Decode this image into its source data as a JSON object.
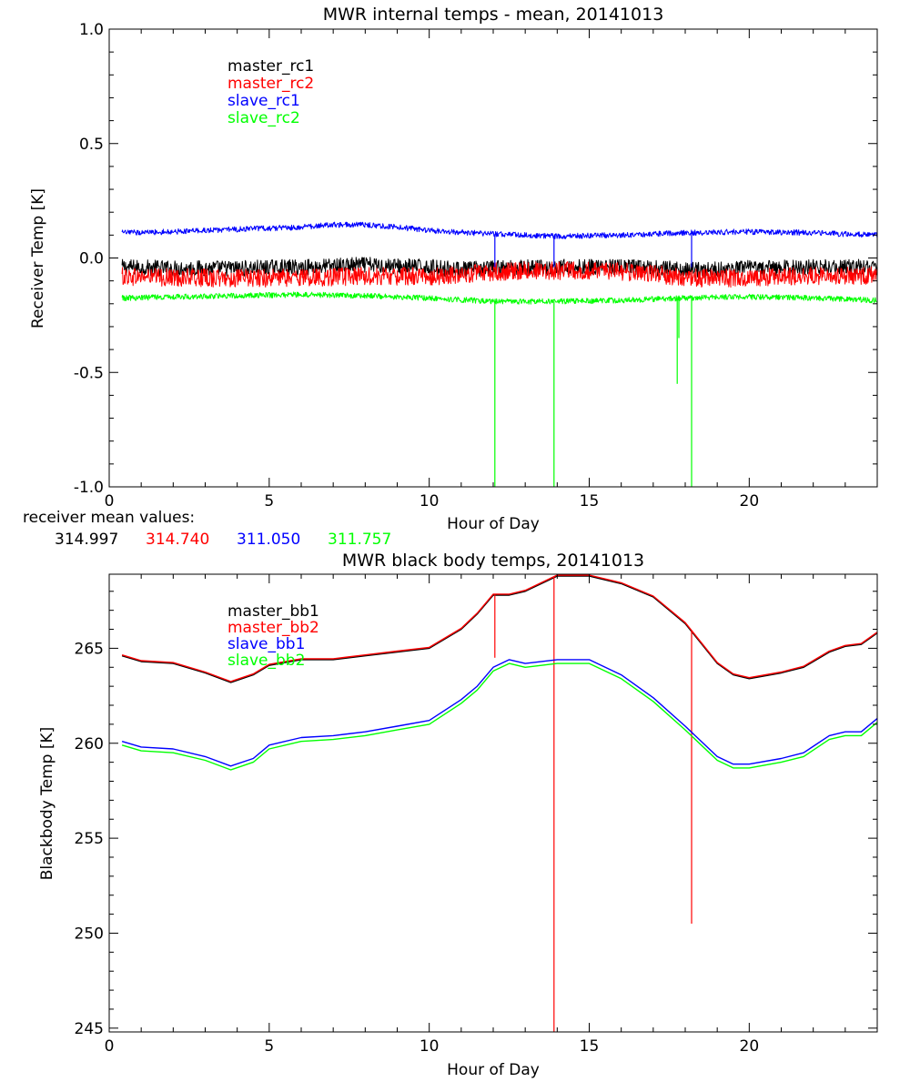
{
  "mean_values": {
    "label": "receiver mean values:",
    "values": [
      {
        "text": "314.997",
        "color": "#000000"
      },
      {
        "text": "314.740",
        "color": "#ff0000"
      },
      {
        "text": "311.050",
        "color": "#0000ff"
      },
      {
        "text": "311.757",
        "color": "#00ff00"
      }
    ]
  },
  "chart_data": [
    {
      "type": "line",
      "title": "MWR internal temps - mean, 20141013",
      "xlabel": "Hour of Day",
      "ylabel": "Receiver Temp [K]",
      "xlim": [
        0,
        24
      ],
      "ylim": [
        -1.0,
        1.0
      ],
      "xticks": [
        0,
        5,
        10,
        15,
        20
      ],
      "xtick_labels": [
        "0",
        "5",
        "10",
        "15",
        "20"
      ],
      "yticks": [
        -1.0,
        -0.5,
        0.0,
        0.5,
        1.0
      ],
      "ytick_labels": [
        "-1.0",
        "-0.5",
        "0.0",
        "0.5",
        "1.0"
      ],
      "grid": false,
      "legend_position": "top-left",
      "series": [
        {
          "name": "master_rc1",
          "color": "#000000",
          "noise": 0.035,
          "x": [
            0.4,
            2,
            4,
            6,
            8,
            10,
            11,
            12,
            13,
            14,
            15,
            16,
            17,
            18,
            19,
            20,
            22,
            24
          ],
          "y": [
            -0.04,
            -0.045,
            -0.045,
            -0.04,
            -0.03,
            -0.04,
            -0.05,
            -0.045,
            -0.04,
            -0.04,
            -0.04,
            -0.04,
            -0.045,
            -0.05,
            -0.05,
            -0.045,
            -0.04,
            -0.04
          ]
        },
        {
          "name": "master_rc2",
          "color": "#ff0000",
          "noise": 0.04,
          "x": [
            0.4,
            2,
            4,
            6,
            8,
            10,
            11,
            12,
            13,
            14,
            15,
            16,
            17,
            18,
            19,
            20,
            22,
            24
          ],
          "y": [
            -0.08,
            -0.085,
            -0.09,
            -0.085,
            -0.08,
            -0.08,
            -0.075,
            -0.06,
            -0.055,
            -0.055,
            -0.055,
            -0.06,
            -0.07,
            -0.085,
            -0.09,
            -0.085,
            -0.08,
            -0.075
          ]
        },
        {
          "name": "slave_rc1",
          "color": "#0000ff",
          "noise": 0.012,
          "x": [
            0.4,
            2,
            4,
            6,
            7,
            8,
            9,
            10,
            12,
            14,
            16,
            18,
            20,
            22,
            24
          ],
          "y": [
            0.11,
            0.115,
            0.125,
            0.135,
            0.145,
            0.145,
            0.135,
            0.12,
            0.105,
            0.095,
            0.1,
            0.11,
            0.115,
            0.11,
            0.1
          ],
          "spikes": [
            {
              "x": 12.05,
              "y": -0.04
            },
            {
              "x": 13.9,
              "y": -0.04
            },
            {
              "x": 18.2,
              "y": -0.04
            }
          ]
        },
        {
          "name": "slave_rc2",
          "color": "#00ff00",
          "noise": 0.012,
          "x": [
            0.4,
            2,
            4,
            6,
            8,
            10,
            12,
            14,
            16,
            18,
            20,
            22,
            24
          ],
          "y": [
            -0.175,
            -0.17,
            -0.165,
            -0.16,
            -0.165,
            -0.175,
            -0.19,
            -0.19,
            -0.185,
            -0.175,
            -0.17,
            -0.175,
            -0.185
          ],
          "spikes": [
            {
              "x": 12.05,
              "y": -1.0
            },
            {
              "x": 13.9,
              "y": -1.0
            },
            {
              "x": 17.75,
              "y": -0.55
            },
            {
              "x": 17.8,
              "y": -0.35
            },
            {
              "x": 18.2,
              "y": -1.0
            }
          ]
        }
      ]
    },
    {
      "type": "line",
      "title": "MWR black body temps, 20141013",
      "xlabel": "Hour of Day",
      "ylabel": "Blackbody Temp [K]",
      "xlim": [
        0,
        24
      ],
      "ylim": [
        244.8,
        268.9
      ],
      "xticks": [
        0,
        5,
        10,
        15,
        20
      ],
      "xtick_labels": [
        "0",
        "5",
        "10",
        "15",
        "20"
      ],
      "yticks": [
        245,
        250,
        255,
        260,
        265
      ],
      "ytick_labels": [
        "245",
        "250",
        "255",
        "260",
        "265"
      ],
      "grid": false,
      "legend_position": "top-left",
      "series": [
        {
          "name": "master_bb1",
          "color": "#000000",
          "x": [
            0.4,
            1,
            2,
            3,
            3.8,
            4.5,
            5,
            6,
            7,
            8,
            9,
            10,
            11,
            11.5,
            12,
            12.5,
            13,
            14,
            15,
            16,
            17,
            18,
            19,
            19.5,
            20,
            21,
            21.7,
            22.5,
            23,
            23.5,
            24
          ],
          "y": [
            264.6,
            264.3,
            264.2,
            263.7,
            263.2,
            263.6,
            264.1,
            264.4,
            264.4,
            264.6,
            264.8,
            265.0,
            266.0,
            266.8,
            267.8,
            267.8,
            268.0,
            268.8,
            268.8,
            268.4,
            267.7,
            266.3,
            264.2,
            263.6,
            263.4,
            263.7,
            264.0,
            264.8,
            265.1,
            265.2,
            265.8
          ]
        },
        {
          "name": "master_bb2",
          "color": "#ff0000",
          "x": [
            0.4,
            1,
            2,
            3,
            3.8,
            4.5,
            5,
            6,
            7,
            8,
            9,
            10,
            11,
            11.5,
            12,
            12.5,
            13,
            14,
            15,
            16,
            17,
            18,
            19,
            19.5,
            20,
            21,
            21.7,
            22.5,
            23,
            23.5,
            24
          ],
          "y": [
            264.65,
            264.35,
            264.25,
            263.75,
            263.25,
            263.65,
            264.15,
            264.45,
            264.45,
            264.65,
            264.85,
            265.05,
            266.05,
            266.85,
            267.85,
            267.85,
            268.05,
            268.85,
            268.85,
            268.45,
            267.75,
            266.35,
            264.25,
            263.65,
            263.45,
            263.75,
            264.05,
            264.85,
            265.15,
            265.25,
            265.85
          ],
          "spikes": [
            {
              "x": 12.05,
              "y": 264.5
            },
            {
              "x": 13.9,
              "y": 244.8
            },
            {
              "x": 18.2,
              "y": 250.5
            }
          ]
        },
        {
          "name": "slave_bb1",
          "color": "#0000ff",
          "x": [
            0.4,
            1,
            2,
            3,
            3.8,
            4.5,
            5,
            6,
            7,
            8,
            9,
            10,
            11,
            11.5,
            12,
            12.5,
            13,
            14,
            15,
            16,
            17,
            18,
            19,
            19.5,
            20,
            21,
            21.7,
            22.5,
            23,
            23.5,
            24
          ],
          "y": [
            260.1,
            259.8,
            259.7,
            259.3,
            258.8,
            259.2,
            259.9,
            260.3,
            260.4,
            260.6,
            260.9,
            261.2,
            262.3,
            263.0,
            264.0,
            264.4,
            264.2,
            264.4,
            264.4,
            263.6,
            262.4,
            260.9,
            259.3,
            258.9,
            258.9,
            259.2,
            259.5,
            260.4,
            260.6,
            260.6,
            261.3
          ]
        },
        {
          "name": "slave_bb2",
          "color": "#00ff00",
          "x": [
            0.4,
            1,
            2,
            3,
            3.8,
            4.5,
            5,
            6,
            7,
            8,
            9,
            10,
            11,
            11.5,
            12,
            12.5,
            13,
            14,
            15,
            16,
            17,
            18,
            19,
            19.5,
            20,
            21,
            21.7,
            22.5,
            23,
            23.5,
            24
          ],
          "y": [
            259.9,
            259.6,
            259.5,
            259.1,
            258.6,
            259.0,
            259.7,
            260.1,
            260.2,
            260.4,
            260.7,
            261.0,
            262.1,
            262.8,
            263.8,
            264.2,
            264.0,
            264.2,
            264.2,
            263.4,
            262.2,
            260.7,
            259.1,
            258.7,
            258.7,
            259.0,
            259.3,
            260.2,
            260.4,
            260.4,
            261.1
          ]
        }
      ]
    }
  ]
}
